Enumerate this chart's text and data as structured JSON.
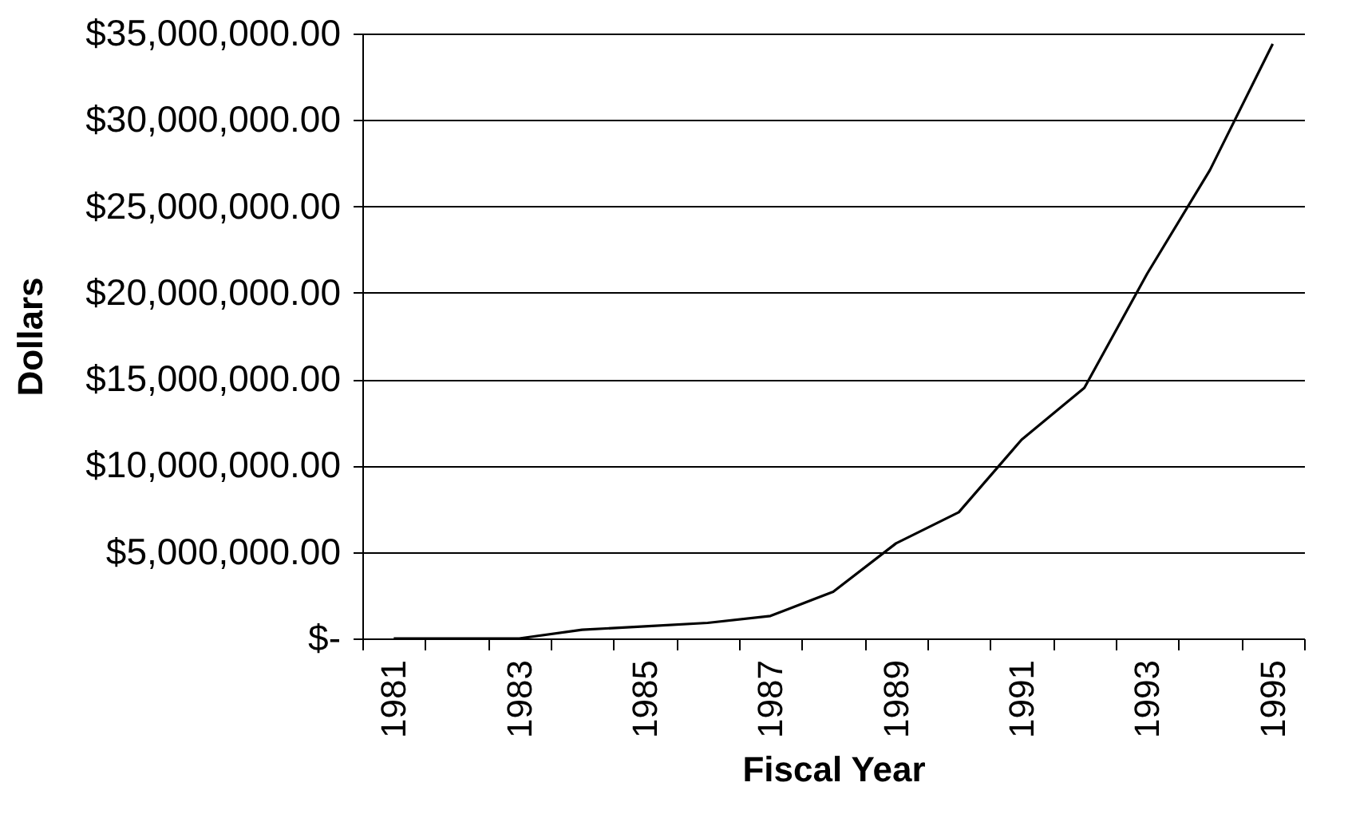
{
  "chart_data": {
    "type": "line",
    "xlabel": "Fiscal Year",
    "ylabel": "Dollars",
    "categories": [
      "1981",
      null,
      "1983",
      null,
      "1985",
      null,
      "1987",
      null,
      "1989",
      null,
      "1991",
      null,
      "1993",
      null,
      "1995"
    ],
    "series": [
      {
        "color": "#000000",
        "values": [
          0,
          0,
          0,
          500000,
          700000,
          900000,
          1300000,
          2700000,
          5500000,
          7300000,
          11500000,
          14500000,
          21100000,
          27100000,
          34400000
        ]
      }
    ],
    "ylim": [
      0,
      35000000
    ],
    "yticks": [
      {
        "value": 0,
        "label": "$-"
      },
      {
        "value": 5000000,
        "label": "$5,000,000.00"
      },
      {
        "value": 10000000,
        "label": "$10,000,000.00"
      },
      {
        "value": 15000000,
        "label": "$15,000,000.00"
      },
      {
        "value": 20000000,
        "label": "$20,000,000.00"
      },
      {
        "value": 25000000,
        "label": "$25,000,000.00"
      },
      {
        "value": 30000000,
        "label": "$30,000,000.00"
      },
      {
        "value": 35000000,
        "label": "$35,000,000.00"
      }
    ],
    "grid": "y",
    "marker": "none",
    "line_style": "solid"
  }
}
